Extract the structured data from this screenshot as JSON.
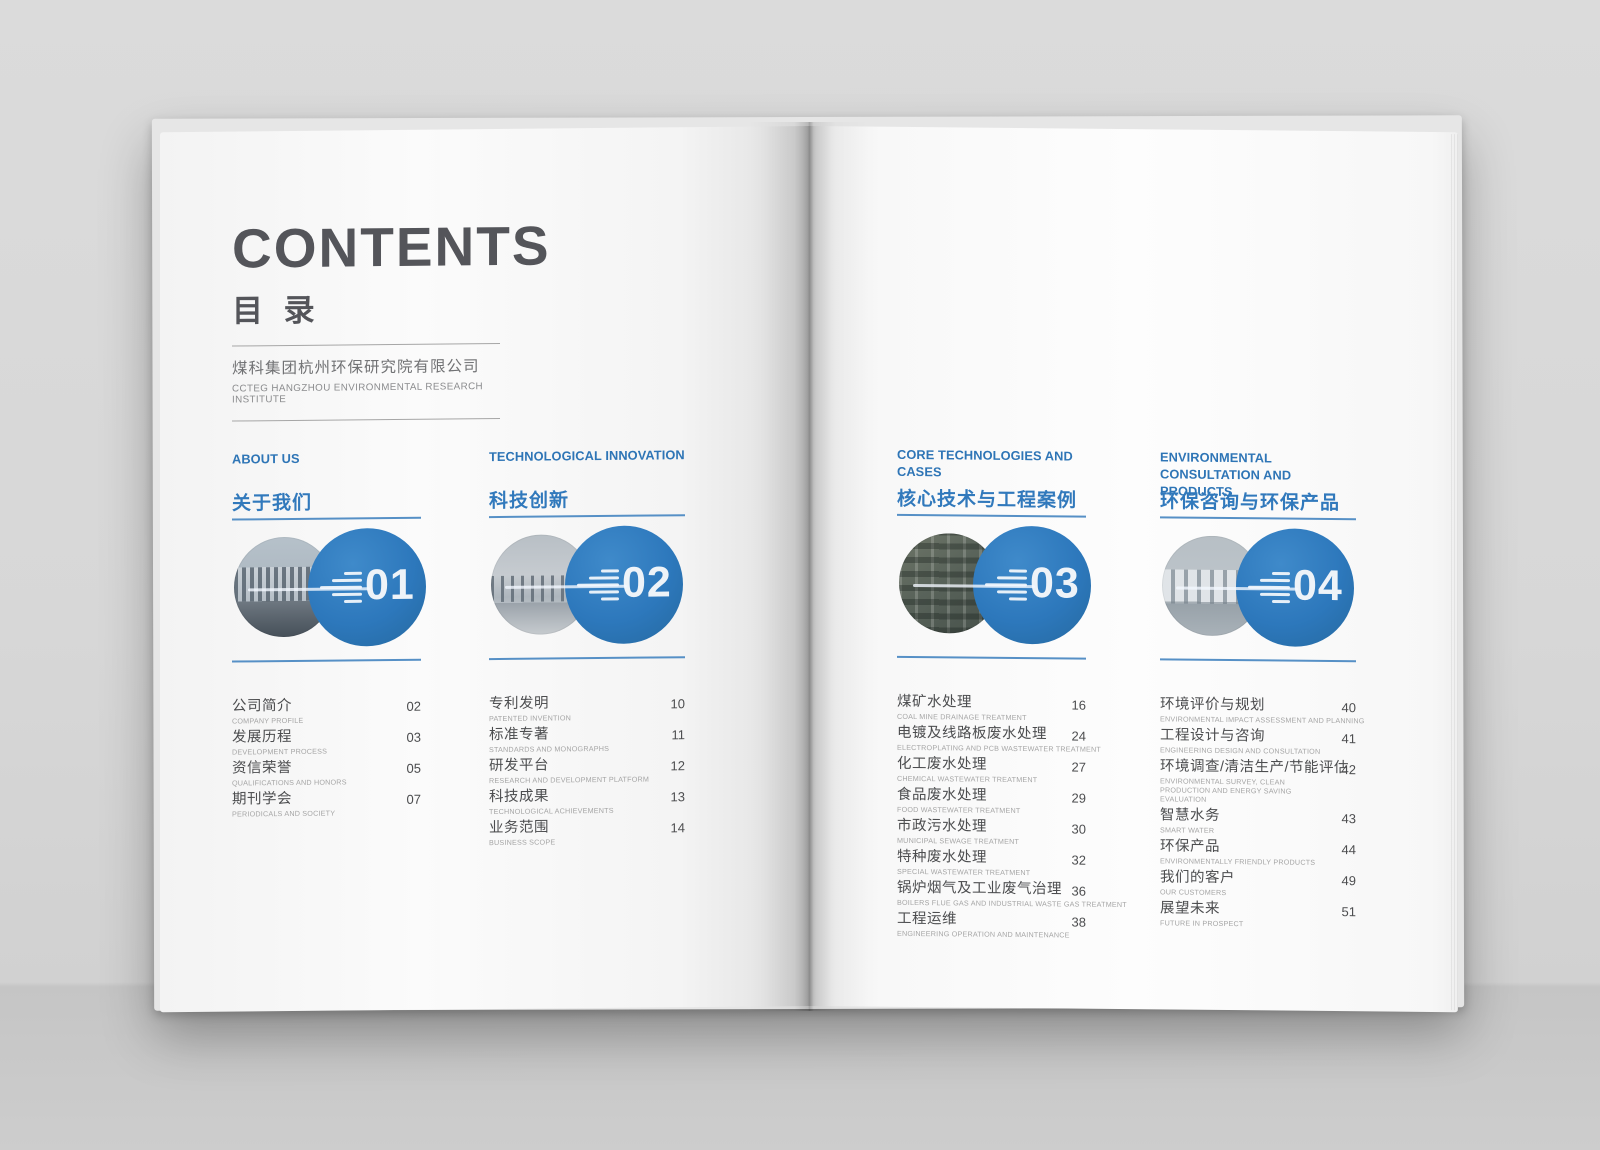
{
  "colors": {
    "accent_blue": "#2e75b6",
    "circle_blue": "#2d78bc",
    "title_gray": "#54555a",
    "wall_gray": "#d7d7d7"
  },
  "header": {
    "title": "CONTENTS",
    "title_zh": "目 录",
    "company_zh": "煤科集团杭州环保研究院有限公司",
    "company_en": "CCTEG HANGZHOU ENVIRONMENTAL RESEARCH INSTITUTE"
  },
  "sections": [
    {
      "number": "01",
      "title_en": "ABOUT US",
      "title_zh": "关于我们",
      "photo": "office-building-photo",
      "items": [
        {
          "zh": "公司简介",
          "en": "COMPANY PROFILE",
          "page": "02"
        },
        {
          "zh": "发展历程",
          "en": "DEVELOPMENT PROCESS",
          "page": "03"
        },
        {
          "zh": "资信荣誉",
          "en": "QUALIFICATIONS AND HONORS",
          "page": "05"
        },
        {
          "zh": "期刊学会",
          "en": "PERIODICALS AND SOCIETY",
          "page": "07"
        }
      ]
    },
    {
      "number": "02",
      "title_en": "TECHNOLOGICAL INNOVATION",
      "title_zh": "科技创新",
      "photo": "laboratory-photo",
      "items": [
        {
          "zh": "专利发明",
          "en": "PATENTED INVENTION",
          "page": "10"
        },
        {
          "zh": "标准专著",
          "en": "STANDARDS AND MONOGRAPHS",
          "page": "11"
        },
        {
          "zh": "研发平台",
          "en": "RESEARCH AND DEVELOPMENT PLATFORM",
          "page": "12"
        },
        {
          "zh": "科技成果",
          "en": "TECHNOLOGICAL ACHIEVEMENTS",
          "page": "13"
        },
        {
          "zh": "业务范围",
          "en": "BUSINESS SCOPE",
          "page": "14"
        }
      ]
    },
    {
      "number": "03",
      "title_en": "CORE TECHNOLOGIES AND CASES",
      "title_zh": "核心技术与工程案例",
      "photo": "treatment-plant-aerial-photo",
      "items": [
        {
          "zh": "煤矿水处理",
          "en": "COAL MINE DRAINAGE TREATMENT",
          "page": "16"
        },
        {
          "zh": "电镀及线路板废水处理",
          "en": "ELECTROPLATING AND PCB WASTEWATER TREATMENT",
          "page": "24"
        },
        {
          "zh": "化工废水处理",
          "en": "CHEMICAL WASTEWATER TREATMENT",
          "page": "27"
        },
        {
          "zh": "食品废水处理",
          "en": "FOOD WASTEWATER TREATMENT",
          "page": "29"
        },
        {
          "zh": "市政污水处理",
          "en": "MUNICIPAL SEWAGE TREATMENT",
          "page": "30"
        },
        {
          "zh": "特种废水处理",
          "en": "SPECIAL WASTEWATER TREATMENT",
          "page": "32"
        },
        {
          "zh": "锅炉烟气及工业废气治理",
          "en": "BOILERS FLUE GAS AND INDUSTRIAL WASTE GAS TREATMENT",
          "page": "36"
        },
        {
          "zh": "工程运维",
          "en": "ENGINEERING OPERATION AND MAINTENANCE",
          "page": "38"
        }
      ]
    },
    {
      "number": "04",
      "title_en": "ENVIRONMENTAL CONSULTATION AND PRODUCTS",
      "title_zh": "环保咨询与环保产品",
      "photo": "industrial-tanks-photo",
      "items": [
        {
          "zh": "环境评价与规划",
          "en": "ENVIRONMENTAL IMPACT ASSESSMENT AND PLANNING",
          "page": "40"
        },
        {
          "zh": "工程设计与咨询",
          "en": "ENGINEERING DESIGN AND CONSULTATION",
          "page": "41"
        },
        {
          "zh": "环境调查/清洁生产/节能评估",
          "en": "ENVIRONMENTAL SURVEY, CLEAN PRODUCTION AND ENERGY SAVING EVALUATION",
          "page": "42"
        },
        {
          "zh": "智慧水务",
          "en": "SMART WATER",
          "page": "43"
        },
        {
          "zh": "环保产品",
          "en": "ENVIRONMENTALLY FRIENDLY PRODUCTS",
          "page": "44"
        },
        {
          "zh": "我们的客户",
          "en": "OUR CUSTOMERS",
          "page": "49"
        },
        {
          "zh": "展望未来",
          "en": "FUTURE IN PROSPECT",
          "page": "51"
        }
      ]
    }
  ]
}
